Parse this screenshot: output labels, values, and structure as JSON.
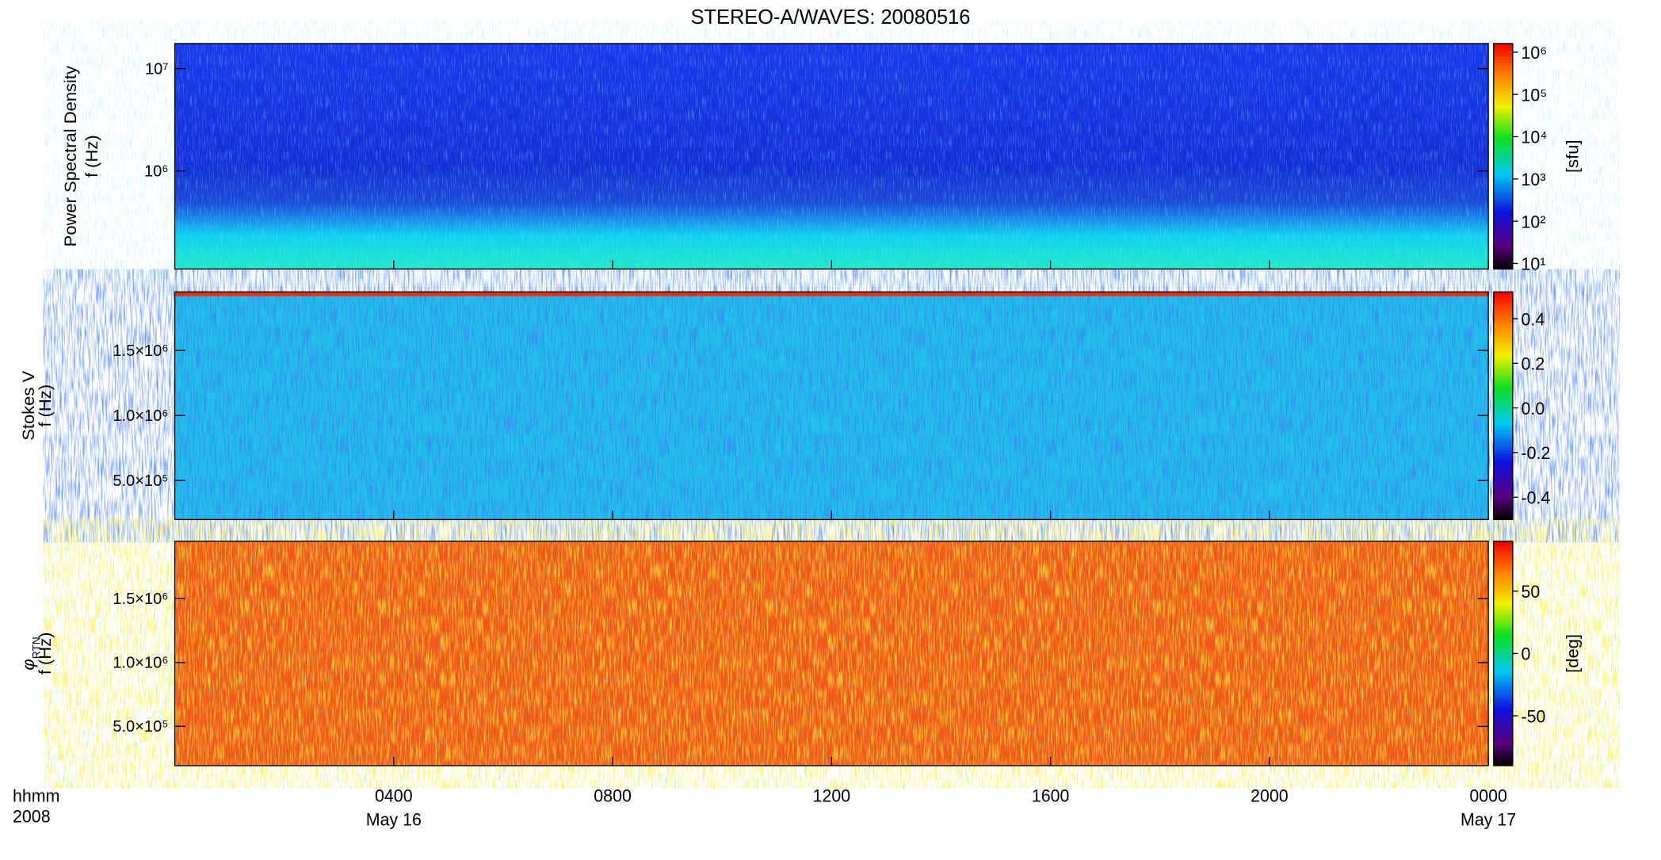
{
  "title": "STEREO-A/WAVES: 20080516",
  "x_axis": {
    "xlim": [
      0,
      24
    ],
    "xticks": [
      {
        "value": 4,
        "label": "0400"
      },
      {
        "value": 8,
        "label": "0800"
      },
      {
        "value": 12,
        "label": "1200"
      },
      {
        "value": 16,
        "label": "1600"
      },
      {
        "value": 20,
        "label": "2000"
      },
      {
        "value": 24,
        "label": "0000"
      }
    ],
    "dates": [
      {
        "value": 4,
        "label": "May 16"
      },
      {
        "value": 24,
        "label": "May 17"
      }
    ],
    "time_label": "hhmm",
    "year_label": "2008"
  },
  "chart_data": [
    {
      "type": "spectrogram",
      "ylabel": [
        "Power Spectral Density",
        "f (Hz)"
      ],
      "ylog": true,
      "ylim": [
        110000,
        17600000
      ],
      "yticks": [
        {
          "value": 1000000,
          "label": "10⁶"
        },
        {
          "value": 10000000,
          "label": "10⁷"
        }
      ],
      "colorbar": {
        "label": "[sfu]",
        "log": true,
        "clim": [
          7.4,
          1600000
        ],
        "colormap": "rainbow",
        "ticks": [
          {
            "value": 10,
            "label": "10¹"
          },
          {
            "value": 100,
            "label": "10²"
          },
          {
            "value": 1000,
            "label": "10³"
          },
          {
            "value": 10000,
            "label": "10⁴"
          },
          {
            "value": 100000,
            "label": "10⁵"
          },
          {
            "value": 1000000,
            "label": "10⁶"
          }
        ]
      }
    },
    {
      "type": "spectrogram",
      "ylabel": [
        "Stokes V",
        "f (Hz)"
      ],
      "ylog": false,
      "ylim": [
        200000,
        1950000
      ],
      "yticks": [
        {
          "value": 500000,
          "label": "5.0×10⁵"
        },
        {
          "value": 1000000,
          "label": "1.0×10⁶"
        },
        {
          "value": 1500000,
          "label": "1.5×10⁶"
        }
      ],
      "colorbar": {
        "label": "",
        "log": false,
        "clim": [
          -0.5,
          0.52
        ],
        "colormap": "rainbow",
        "ticks": [
          -0.4,
          -0.2,
          {
            "value": 0,
            "label": "0.0"
          },
          0.2,
          0.4
        ]
      }
    },
    {
      "type": "spectrogram",
      "ylabel": [
        {
          "text": "φ",
          "sub": "RTN"
        },
        "f (Hz)"
      ],
      "ylog": false,
      "ylim": [
        192000,
        1950000
      ],
      "yticks": [
        {
          "value": 500000,
          "label": "5.0×10⁵"
        },
        {
          "value": 1000000,
          "label": "1.0×10⁶"
        },
        {
          "value": 1500000,
          "label": "1.5×10⁶"
        }
      ],
      "colorbar": {
        "label": "[deg]",
        "log": false,
        "clim": [
          -90,
          90
        ],
        "colormap": "rainbow",
        "ticks": [
          -50,
          0,
          50
        ]
      }
    }
  ]
}
